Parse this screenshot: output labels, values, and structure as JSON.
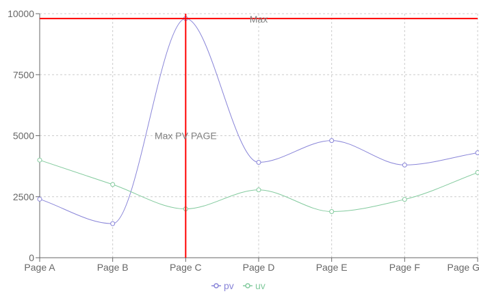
{
  "chart_data": {
    "type": "line",
    "categories": [
      "Page A",
      "Page B",
      "Page C",
      "Page D",
      "Page E",
      "Page F",
      "Page G"
    ],
    "series": [
      {
        "name": "pv",
        "color": "#8884d8",
        "values": [
          2400,
          1398,
          9800,
          3908,
          4800,
          3800,
          4300
        ]
      },
      {
        "name": "uv",
        "color": "#82ca9d",
        "values": [
          4000,
          3000,
          2000,
          2780,
          1890,
          2390,
          3490
        ]
      }
    ],
    "ylim": [
      0,
      10000
    ],
    "yticks": [
      0,
      2500,
      5000,
      7500,
      10000
    ],
    "grid": true,
    "legend_position": "bottom",
    "reference_lines": [
      {
        "orientation": "horizontal",
        "value": 9800,
        "label": "Max",
        "color": "#ff0000"
      },
      {
        "orientation": "vertical",
        "category": "Page C",
        "label": "Max PV PAGE",
        "color": "#ff0000"
      }
    ]
  }
}
